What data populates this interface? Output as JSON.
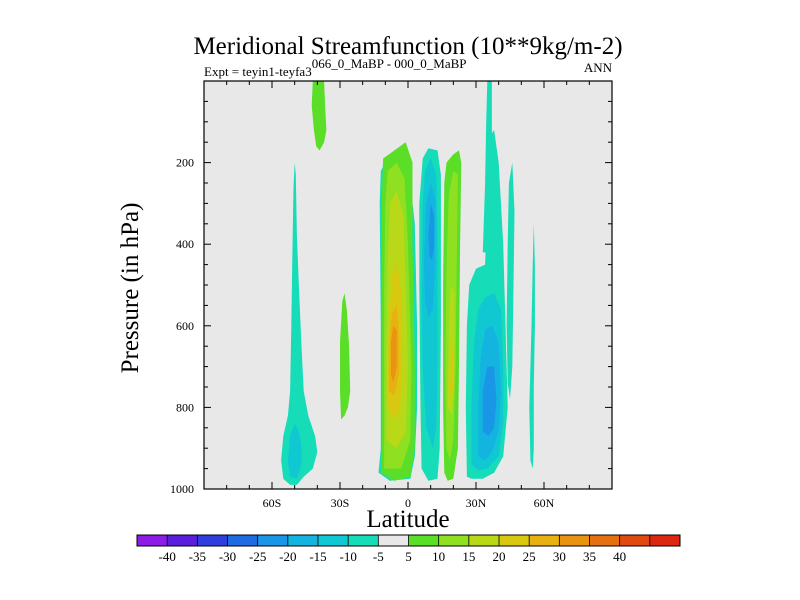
{
  "chart_data": {
    "type": "contour",
    "title": "Meridional Streamfunction (10**9kg/m-2)",
    "subtitle_left_prefix": "Expt = teyin1-teyfa3",
    "subtitle_left_superscript": "066_0_MaBP - 000_0_MaBP",
    "subtitle_right": "ANN",
    "xlabel": "Latitude",
    "ylabel": "Pressure (in hPa)",
    "xlim": [
      -90,
      90
    ],
    "ylim": [
      1000,
      0
    ],
    "x_ticks": [
      {
        "value": -60,
        "label": "60S"
      },
      {
        "value": -30,
        "label": "30S"
      },
      {
        "value": 0,
        "label": "0"
      },
      {
        "value": 30,
        "label": "30N"
      },
      {
        "value": 60,
        "label": "60N"
      }
    ],
    "y_ticks": [
      {
        "value": 200,
        "label": "200"
      },
      {
        "value": 400,
        "label": "400"
      },
      {
        "value": 600,
        "label": "600"
      },
      {
        "value": 800,
        "label": "800"
      },
      {
        "value": 1000,
        "label": "1000"
      }
    ],
    "background_color": "#e8e8e8",
    "colorbar": {
      "colors": [
        "#8c1ce6",
        "#5a1fdc",
        "#2f3fdb",
        "#1f6ce0",
        "#1a96e6",
        "#13b4e0",
        "#10c8d2",
        "#16dcb8",
        "#e8e8e8",
        "#5ade28",
        "#8ee020",
        "#b8d818",
        "#d8c810",
        "#e8b010",
        "#e89410",
        "#e47010",
        "#e04a10",
        "#dc2810"
      ],
      "labels": [
        "-40",
        "-35",
        "-30",
        "-25",
        "-20",
        "-15",
        "-10",
        "-5",
        "5",
        "10",
        "15",
        "20",
        "25",
        "30",
        "35",
        "40"
      ]
    },
    "contours": [
      {
        "name": "sh-polar-cell",
        "color": "#16dcb8",
        "points": [
          [
            -49,
            990
          ],
          [
            -46,
            970
          ],
          [
            -42,
            950
          ],
          [
            -40,
            910
          ],
          [
            -41,
            870
          ],
          [
            -44,
            820
          ],
          [
            -46,
            760
          ],
          [
            -47,
            650
          ],
          [
            -48,
            520
          ],
          [
            -49,
            380
          ],
          [
            -49.5,
            230
          ],
          [
            -50,
            200
          ],
          [
            -50.5,
            260
          ],
          [
            -51,
            420
          ],
          [
            -51.5,
            600
          ],
          [
            -52,
            760
          ],
          [
            -53,
            820
          ],
          [
            -55,
            870
          ],
          [
            -56,
            930
          ],
          [
            -55,
            975
          ],
          [
            -52,
            990
          ]
        ]
      },
      {
        "name": "sh-polar-core",
        "color": "#10c8d2",
        "points": [
          [
            -49,
            975
          ],
          [
            -47,
            940
          ],
          [
            -47,
            900
          ],
          [
            -48,
            860
          ],
          [
            -50,
            840
          ],
          [
            -52,
            870
          ],
          [
            -53,
            930
          ],
          [
            -52,
            970
          ]
        ]
      },
      {
        "name": "upper-green-branch",
        "color": "#5ade28",
        "points": [
          [
            -39,
            170
          ],
          [
            -37,
            150
          ],
          [
            -36,
            120
          ],
          [
            -36.5,
            70
          ],
          [
            -37,
            0
          ],
          [
            -42,
            0
          ],
          [
            -42.5,
            60
          ],
          [
            -41.5,
            120
          ],
          [
            -40.5,
            160
          ]
        ]
      },
      {
        "name": "midlat-green-branch",
        "color": "#5ade28",
        "points": [
          [
            -28,
            820
          ],
          [
            -26.5,
            800
          ],
          [
            -25.5,
            760
          ],
          [
            -26,
            650
          ],
          [
            -27,
            560
          ],
          [
            -28,
            520
          ],
          [
            -29,
            540
          ],
          [
            -30,
            640
          ],
          [
            -30,
            760
          ],
          [
            -29.5,
            830
          ]
        ]
      },
      {
        "name": "hadley-south-outer",
        "color": "#16dcb8",
        "points": [
          [
            -13,
            960
          ],
          [
            -12,
            900
          ],
          [
            -12,
            600
          ],
          [
            -12.5,
            300
          ],
          [
            -12,
            220
          ],
          [
            -9,
            190
          ],
          [
            -3,
            200
          ],
          [
            1,
            250
          ],
          [
            3,
            350
          ],
          [
            4,
            600
          ],
          [
            4,
            800
          ],
          [
            3,
            920
          ],
          [
            1,
            975
          ],
          [
            -8,
            980
          ]
        ]
      },
      {
        "name": "hadley-south-10",
        "color": "#5ade28",
        "points": [
          [
            -12,
            960
          ],
          [
            -11.5,
            900
          ],
          [
            -11.5,
            600
          ],
          [
            -11.5,
            280
          ],
          [
            -11,
            190
          ],
          [
            -6,
            170
          ],
          [
            -1,
            150
          ],
          [
            2,
            200
          ],
          [
            2,
            400
          ],
          [
            3,
            700
          ],
          [
            3,
            900
          ],
          [
            1,
            970
          ],
          [
            -6,
            980
          ]
        ]
      },
      {
        "name": "hadley-south-15",
        "color": "#8ee020",
        "points": [
          [
            -10.5,
            950
          ],
          [
            -10.5,
            800
          ],
          [
            -10.5,
            500
          ],
          [
            -10,
            300
          ],
          [
            -9,
            220
          ],
          [
            -5,
            200
          ],
          [
            -1.5,
            240
          ],
          [
            0,
            400
          ],
          [
            1.5,
            700
          ],
          [
            1,
            880
          ],
          [
            -3,
            950
          ]
        ]
      },
      {
        "name": "hadley-south-20",
        "color": "#b8d818",
        "points": [
          [
            -9.5,
            880
          ],
          [
            -9.5,
            650
          ],
          [
            -9,
            450
          ],
          [
            -8,
            300
          ],
          [
            -5,
            270
          ],
          [
            -2,
            330
          ],
          [
            -1,
            500
          ],
          [
            0,
            700
          ],
          [
            -1,
            860
          ],
          [
            -5,
            900
          ]
        ]
      },
      {
        "name": "hadley-south-25",
        "color": "#d8c810",
        "points": [
          [
            -9,
            800
          ],
          [
            -8.5,
            600
          ],
          [
            -7,
            480
          ],
          [
            -5,
            440
          ],
          [
            -3,
            520
          ],
          [
            -2.5,
            700
          ],
          [
            -3.5,
            800
          ],
          [
            -6,
            830
          ]
        ]
      },
      {
        "name": "hadley-south-30",
        "color": "#e8b010",
        "points": [
          [
            -8.5,
            760
          ],
          [
            -8,
            620
          ],
          [
            -7,
            570
          ],
          [
            -5,
            550
          ],
          [
            -4,
            620
          ],
          [
            -4,
            720
          ],
          [
            -6,
            770
          ]
        ]
      },
      {
        "name": "hadley-south-35",
        "color": "#e89410",
        "points": [
          [
            -7.5,
            720
          ],
          [
            -7.5,
            640
          ],
          [
            -6.5,
            600
          ],
          [
            -5,
            610
          ],
          [
            -5,
            700
          ],
          [
            -6.5,
            740
          ]
        ]
      },
      {
        "name": "hadley-north-neg-outer",
        "color": "#16dcb8",
        "points": [
          [
            5,
            500
          ],
          [
            5,
            300
          ],
          [
            6.5,
            190
          ],
          [
            9,
            165
          ],
          [
            13,
            170
          ],
          [
            14.5,
            230
          ],
          [
            14.5,
            600
          ],
          [
            14,
            900
          ],
          [
            13,
            975
          ],
          [
            9,
            980
          ],
          [
            6,
            950
          ],
          [
            5.5,
            800
          ]
        ]
      },
      {
        "name": "hadley-north-neg-10",
        "color": "#10c8d2",
        "points": [
          [
            6,
            520
          ],
          [
            6.5,
            300
          ],
          [
            7.5,
            220
          ],
          [
            10,
            190
          ],
          [
            12.5,
            230
          ],
          [
            13,
            400
          ],
          [
            13,
            700
          ],
          [
            12.5,
            850
          ],
          [
            11,
            900
          ],
          [
            8,
            850
          ],
          [
            6.5,
            700
          ]
        ]
      },
      {
        "name": "hadley-north-neg-15",
        "color": "#13b4e0",
        "points": [
          [
            7,
            450
          ],
          [
            8,
            300
          ],
          [
            10,
            250
          ],
          [
            12,
            290
          ],
          [
            12,
            450
          ],
          [
            11,
            560
          ],
          [
            9,
            580
          ],
          [
            7.5,
            540
          ]
        ]
      },
      {
        "name": "hadley-north-neg-20",
        "color": "#1a96e6",
        "points": [
          [
            9,
            380
          ],
          [
            10,
            300
          ],
          [
            11.5,
            330
          ],
          [
            11.5,
            410
          ],
          [
            10.5,
            440
          ],
          [
            9.5,
            430
          ]
        ]
      },
      {
        "name": "ferrel-north-outer",
        "color": "#5ade28",
        "points": [
          [
            16,
            960
          ],
          [
            15.5,
            800
          ],
          [
            15.5,
            500
          ],
          [
            16,
            250
          ],
          [
            17,
            200
          ],
          [
            20,
            180
          ],
          [
            22.5,
            170
          ],
          [
            23.5,
            200
          ],
          [
            23,
            400
          ],
          [
            22.5,
            700
          ],
          [
            22,
            900
          ],
          [
            20,
            975
          ],
          [
            17.5,
            980
          ]
        ]
      },
      {
        "name": "ferrel-north-15",
        "color": "#8ee020",
        "points": [
          [
            17,
            900
          ],
          [
            16.5,
            700
          ],
          [
            17,
            450
          ],
          [
            18,
            280
          ],
          [
            20,
            220
          ],
          [
            22,
            230
          ],
          [
            21.5,
            450
          ],
          [
            21,
            700
          ],
          [
            20,
            880
          ],
          [
            18.5,
            930
          ]
        ]
      },
      {
        "name": "ferrel-north-20",
        "color": "#b8d818",
        "points": [
          [
            17.5,
            800
          ],
          [
            18,
            600
          ],
          [
            19,
            500
          ],
          [
            20.5,
            520
          ],
          [
            20.5,
            700
          ],
          [
            19.5,
            820
          ]
        ]
      },
      {
        "name": "ferrel-north-25",
        "color": "#d8c810",
        "points": [
          [
            18.5,
            760
          ],
          [
            19,
            660
          ],
          [
            20,
            650
          ],
          [
            20,
            740
          ],
          [
            19.2,
            780
          ]
        ]
      },
      {
        "name": "north-neg-cell-outer",
        "color": "#16dcb8",
        "points": [
          [
            26,
            970
          ],
          [
            25.5,
            800
          ],
          [
            26,
            600
          ],
          [
            27,
            500
          ],
          [
            30,
            460
          ],
          [
            34,
            450
          ],
          [
            35,
            300
          ],
          [
            35.5,
            140
          ],
          [
            38,
            120
          ],
          [
            40,
            200
          ],
          [
            42,
            400
          ],
          [
            43,
            600
          ],
          [
            44,
            800
          ],
          [
            42,
            920
          ],
          [
            38,
            960
          ],
          [
            33,
            975
          ],
          [
            28,
            975
          ]
        ]
      },
      {
        "name": "north-neg-10",
        "color": "#10c8d2",
        "points": [
          [
            28,
            940
          ],
          [
            28,
            800
          ],
          [
            29,
            650
          ],
          [
            31,
            560
          ],
          [
            34,
            530
          ],
          [
            38,
            520
          ],
          [
            41,
            560
          ],
          [
            42,
            700
          ],
          [
            42,
            840
          ],
          [
            40,
            920
          ],
          [
            35,
            950
          ],
          [
            31,
            955
          ]
        ]
      },
      {
        "name": "north-neg-15",
        "color": "#13b4e0",
        "points": [
          [
            31,
            920
          ],
          [
            31,
            800
          ],
          [
            32,
            680
          ],
          [
            34,
            610
          ],
          [
            37,
            600
          ],
          [
            40,
            640
          ],
          [
            41,
            760
          ],
          [
            40,
            860
          ],
          [
            37,
            910
          ],
          [
            34,
            930
          ]
        ]
      },
      {
        "name": "north-neg-20",
        "color": "#1a96e6",
        "points": [
          [
            33,
            860
          ],
          [
            33,
            760
          ],
          [
            35,
            700
          ],
          [
            38,
            700
          ],
          [
            39,
            780
          ],
          [
            38,
            850
          ],
          [
            35.5,
            870
          ]
        ]
      },
      {
        "name": "north-plume-a",
        "color": "#16dcb8",
        "points": [
          [
            33,
            420
          ],
          [
            34,
            250
          ],
          [
            34.5,
            100
          ],
          [
            35,
            0
          ],
          [
            37,
            0
          ],
          [
            37,
            150
          ],
          [
            36,
            300
          ],
          [
            35.5,
            420
          ]
        ]
      },
      {
        "name": "north-plume-b",
        "color": "#16dcb8",
        "points": [
          [
            44,
            740
          ],
          [
            43.5,
            600
          ],
          [
            44,
            400
          ],
          [
            44.5,
            250
          ],
          [
            46,
            200
          ],
          [
            47,
            320
          ],
          [
            46.5,
            520
          ],
          [
            46,
            700
          ],
          [
            45,
            780
          ]
        ]
      },
      {
        "name": "north-plume-c",
        "color": "#16dcb8",
        "points": [
          [
            54,
            930
          ],
          [
            53.5,
            800
          ],
          [
            54,
            700
          ],
          [
            54.5,
            600
          ],
          [
            55,
            450
          ],
          [
            55.5,
            350
          ],
          [
            56,
            450
          ],
          [
            56,
            600
          ],
          [
            55.5,
            750
          ],
          [
            55.5,
            900
          ],
          [
            55,
            950
          ]
        ]
      }
    ]
  }
}
